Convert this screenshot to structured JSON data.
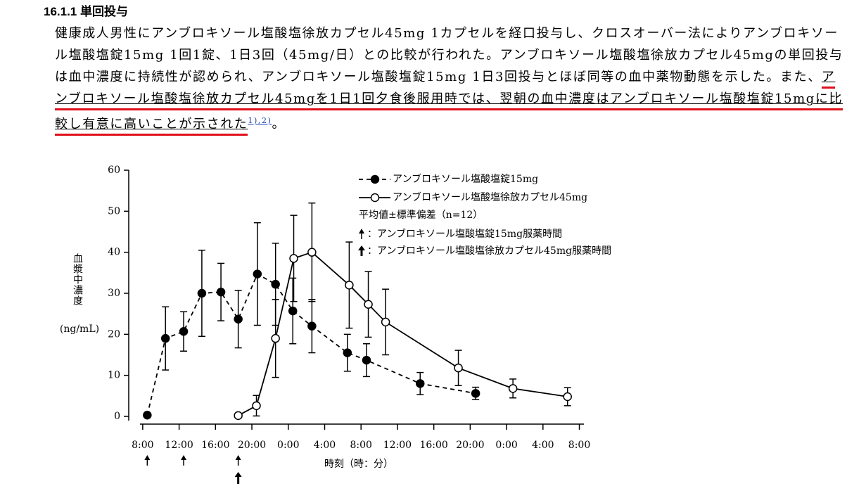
{
  "header": {
    "title": "16.1.1 単回投与"
  },
  "body": {
    "text": "健康成人男性にアンブロキソール塩酸塩徐放カプセル45mg 1カプセルを経口投与し、クロスオーバー法によりアンブロキソール塩酸塩錠15mg 1回1錠、1日3回（45mg/日）との比較が行われた。アンブロキソール塩酸塩徐放カプセル45mgの単回投与は血中濃度に持続性が認められ、アンブロキソール塩酸塩錠15mg 1日3回投与とほぼ同等の血中薬物動態を示した。また、",
    "underlined": "アンブロキソール塩酸塩徐放カプセル45mgを1日1回夕食後服用時では、翌朝の血中濃度はアンブロキソール塩酸塩錠15mgに比較し有意に高いことが示された",
    "refs": "1),2)",
    "end": "。"
  },
  "chart_data": {
    "type": "line",
    "xlabel": "時刻（時：分）",
    "ylabel": "血漿中濃度",
    "ylabel_unit": "(ng/mL)",
    "xlim": [
      7.7,
      56.5
    ],
    "ylim": [
      0,
      60
    ],
    "xticks": [
      {
        "value": 8,
        "label": "8:00"
      },
      {
        "value": 12,
        "label": "12:00"
      },
      {
        "value": 16,
        "label": "16:00"
      },
      {
        "value": 20,
        "label": "20:00"
      },
      {
        "value": 24,
        "label": "0:00"
      },
      {
        "value": 28,
        "label": "4:00"
      },
      {
        "value": 32,
        "label": "8:00"
      },
      {
        "value": 36,
        "label": "12:00"
      },
      {
        "value": 40,
        "label": "16:00"
      },
      {
        "value": 44,
        "label": "20:00"
      },
      {
        "value": 48,
        "label": "0:00"
      },
      {
        "value": 52,
        "label": "4:00"
      },
      {
        "value": 56,
        "label": "8:00"
      }
    ],
    "yticks": [
      0,
      10,
      20,
      30,
      40,
      50,
      60
    ],
    "series": [
      {
        "name": "アンブロキソール塩酸塩錠15mg",
        "color": "#000000",
        "marker": "filled",
        "dashed": true,
        "x": [
          8.5,
          10.5,
          12.5,
          14.5,
          16.6,
          18.5,
          20.6,
          22.6,
          24.5,
          26.6,
          30.5,
          32.6,
          38.5,
          44.6
        ],
        "values": [
          0.3,
          19,
          20.7,
          30,
          30.3,
          23.7,
          34.7,
          32.2,
          25.7,
          22,
          15.5,
          13.7,
          8,
          5.6
        ],
        "errors": [
          0,
          7.7,
          4.8,
          10.5,
          7,
          7,
          12.5,
          10,
          8,
          6.5,
          4.5,
          4,
          2.7,
          1.5
        ]
      },
      {
        "name": "アンブロキソール塩酸塩徐放カプセル45mg",
        "color": "#000000",
        "marker": "open",
        "dashed": false,
        "x": [
          18.5,
          20.5,
          22.6,
          24.6,
          26.6,
          30.7,
          32.8,
          34.7,
          42.7,
          48.7,
          54.7
        ],
        "values": [
          0.2,
          2.6,
          19,
          38.5,
          40,
          32,
          27.3,
          23,
          11.8,
          6.8,
          4.8
        ],
        "errors": [
          0,
          2.5,
          9.5,
          10.5,
          12,
          10.5,
          8,
          8,
          4.3,
          2.3,
          2.2
        ]
      }
    ],
    "note": "平均値±標準偏差（n=12）",
    "dose_legend": [
      "：アンブロキソール塩酸塩錠15mg服薬時間",
      "：アンブロキソール塩酸塩徐放カプセル45mg服薬時間"
    ],
    "dose_times_tablet": [
      8.5,
      12.5,
      18.5
    ],
    "dose_times_capsule": [
      18.5
    ]
  }
}
